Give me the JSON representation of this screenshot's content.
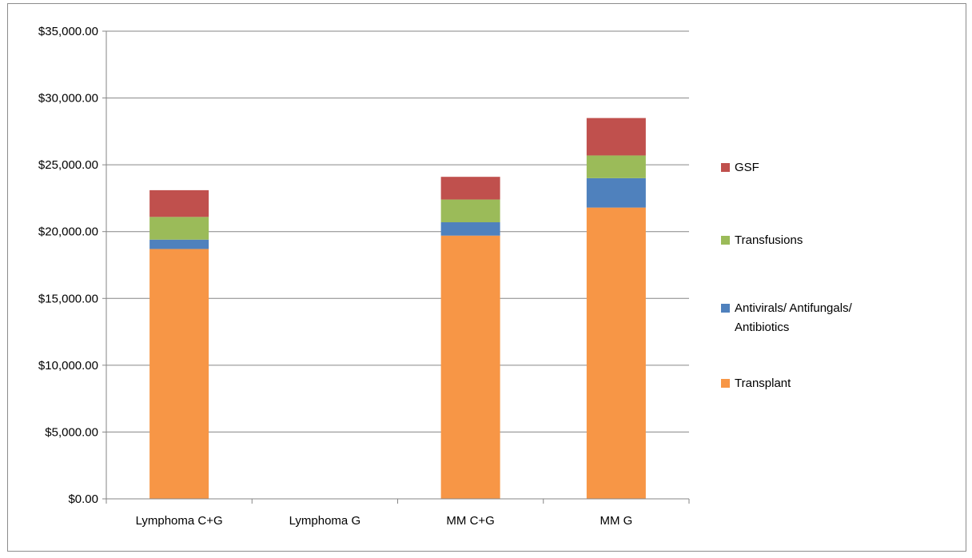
{
  "chart_data": {
    "type": "bar",
    "stacked": true,
    "categories": [
      "Lymphoma C+G",
      "Lymphoma G",
      "MM C+G",
      "MM G"
    ],
    "series": [
      {
        "name": "Transplant",
        "color": "#f79646",
        "values": [
          18700,
          0,
          19700,
          21800
        ]
      },
      {
        "name": "Antivirals/ Antifungals/ Antibiotics",
        "color": "#4f81bd",
        "values": [
          700,
          0,
          1000,
          2200
        ]
      },
      {
        "name": "Transfusions",
        "color": "#9bbb59",
        "values": [
          1700,
          0,
          1700,
          1700
        ]
      },
      {
        "name": "GSF",
        "color": "#c0504d",
        "values": [
          2000,
          0,
          1700,
          2800
        ]
      }
    ],
    "y_ticks": [
      "$0.00",
      "$5,000.00",
      "$10,000.00",
      "$15,000.00",
      "$20,000.00",
      "$25,000.00",
      "$30,000.00",
      "$35,000.00"
    ],
    "ylim": [
      0,
      35000
    ],
    "grid": true,
    "legend_position": "right",
    "legend_order": [
      "GSF",
      "Transfusions",
      "Antivirals/ Antifungals/ Antibiotics",
      "Transplant"
    ],
    "title": "",
    "xlabel": "",
    "ylabel": ""
  }
}
